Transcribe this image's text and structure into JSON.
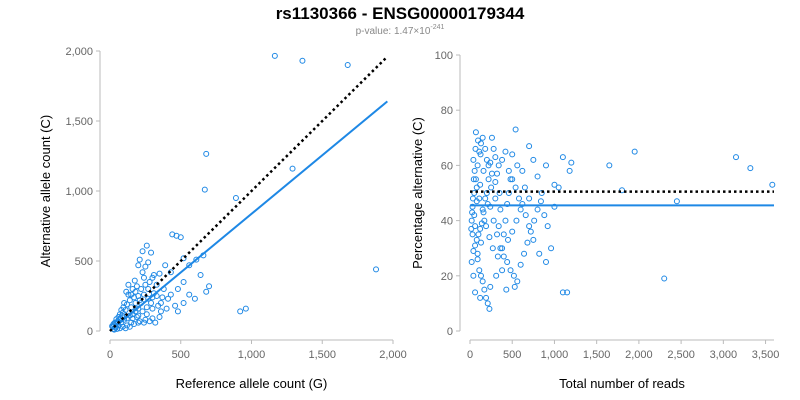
{
  "title": "rs1130366 - ENSG00000179344",
  "subtitle": {
    "prefix": "p-value: ",
    "mantissa": "1.47×10",
    "exponent": "-241"
  },
  "colors": {
    "points": "#1e88e5",
    "fit": "#1e88e5",
    "reference": "#000000",
    "axes": "#bbbbbb",
    "ticks": "#666666"
  },
  "chart_data": [
    {
      "type": "scatter",
      "xlabel": "Reference allele count (G)",
      "ylabel": "Alternative allele count (C)",
      "xlim": [
        0,
        2000
      ],
      "ylim": [
        0,
        2000
      ],
      "xticks": [
        0,
        500,
        1000,
        1500,
        2000
      ],
      "xtick_labels": [
        "0",
        "500",
        "1,000",
        "1,500",
        "2,000"
      ],
      "yticks": [
        0,
        500,
        1000,
        1500,
        2000
      ],
      "ytick_labels": [
        "0",
        "500",
        "1,000",
        "1,500",
        "2,000"
      ],
      "points": [
        [
          1165,
          1965
        ],
        [
          1360,
          1930
        ],
        [
          1680,
          1900
        ],
        [
          680,
          1265
        ],
        [
          670,
          1010
        ],
        [
          1290,
          1160
        ],
        [
          890,
          950
        ],
        [
          440,
          690
        ],
        [
          470,
          680
        ],
        [
          500,
          670
        ],
        [
          660,
          540
        ],
        [
          1880,
          440
        ],
        [
          960,
          160
        ],
        [
          920,
          140
        ],
        [
          520,
          520
        ],
        [
          560,
          470
        ],
        [
          430,
          420
        ],
        [
          390,
          470
        ],
        [
          610,
          510
        ],
        [
          350,
          410
        ],
        [
          300,
          380
        ],
        [
          560,
          260
        ],
        [
          600,
          230
        ],
        [
          680,
          280
        ],
        [
          480,
          300
        ],
        [
          430,
          260
        ],
        [
          380,
          300
        ],
        [
          520,
          350
        ],
        [
          700,
          320
        ],
        [
          640,
          400
        ],
        [
          480,
          140
        ],
        [
          460,
          180
        ],
        [
          520,
          200
        ],
        [
          410,
          230
        ],
        [
          360,
          200
        ],
        [
          330,
          330
        ],
        [
          270,
          300
        ],
        [
          250,
          330
        ],
        [
          240,
          380
        ],
        [
          220,
          300
        ],
        [
          200,
          250
        ],
        [
          180,
          280
        ],
        [
          300,
          240
        ],
        [
          290,
          200
        ],
        [
          260,
          170
        ],
        [
          220,
          200
        ],
        [
          200,
          160
        ],
        [
          180,
          200
        ],
        [
          170,
          240
        ],
        [
          150,
          170
        ],
        [
          140,
          220
        ],
        [
          130,
          260
        ],
        [
          120,
          190
        ],
        [
          110,
          150
        ],
        [
          100,
          200
        ],
        [
          95,
          170
        ],
        [
          90,
          130
        ],
        [
          85,
          110
        ],
        [
          80,
          150
        ],
        [
          75,
          90
        ],
        [
          70,
          120
        ],
        [
          65,
          80
        ],
        [
          60,
          100
        ],
        [
          55,
          70
        ],
        [
          50,
          60
        ],
        [
          45,
          85
        ],
        [
          40,
          50
        ],
        [
          35,
          60
        ],
        [
          30,
          40
        ],
        [
          25,
          50
        ],
        [
          20,
          30
        ],
        [
          15,
          35
        ],
        [
          60,
          40
        ],
        [
          80,
          60
        ],
        [
          100,
          80
        ],
        [
          120,
          90
        ],
        [
          140,
          110
        ],
        [
          160,
          120
        ],
        [
          180,
          140
        ],
        [
          200,
          110
        ],
        [
          230,
          140
        ],
        [
          260,
          120
        ],
        [
          300,
          160
        ],
        [
          340,
          180
        ],
        [
          360,
          140
        ],
        [
          400,
          160
        ],
        [
          150,
          60
        ],
        [
          200,
          60
        ],
        [
          250,
          80
        ],
        [
          300,
          90
        ],
        [
          350,
          100
        ],
        [
          120,
          40
        ],
        [
          170,
          50
        ],
        [
          90,
          30
        ],
        [
          70,
          20
        ],
        [
          110,
          20
        ],
        [
          140,
          30
        ],
        [
          50,
          15
        ],
        [
          30,
          10
        ],
        [
          40,
          25
        ],
        [
          25,
          15
        ],
        [
          160,
          90
        ],
        [
          190,
          100
        ],
        [
          210,
          70
        ],
        [
          240,
          60
        ],
        [
          280,
          70
        ],
        [
          320,
          60
        ],
        [
          270,
          230
        ],
        [
          310,
          270
        ],
        [
          330,
          250
        ],
        [
          370,
          240
        ],
        [
          240,
          260
        ],
        [
          210,
          220
        ],
        [
          190,
          320
        ],
        [
          160,
          300
        ],
        [
          130,
          330
        ],
        [
          115,
          280
        ],
        [
          150,
          260
        ],
        [
          175,
          360
        ],
        [
          280,
          350
        ],
        [
          310,
          400
        ],
        [
          230,
          420
        ],
        [
          250,
          460
        ],
        [
          270,
          490
        ],
        [
          210,
          510
        ],
        [
          200,
          470
        ],
        [
          290,
          560
        ],
        [
          260,
          610
        ],
        [
          230,
          570
        ]
      ],
      "fit_line": {
        "x": [
          0,
          1960
        ],
        "y": [
          0,
          1640
        ]
      },
      "reference_line": {
        "x": [
          0,
          1960
        ],
        "y": [
          0,
          1960
        ]
      }
    },
    {
      "type": "scatter",
      "xlabel": "Total number of reads",
      "ylabel": "Percentage alternative (C)",
      "xlim": [
        0,
        3600
      ],
      "ylim": [
        0,
        100
      ],
      "xticks": [
        0,
        500,
        1000,
        1500,
        2000,
        2500,
        3000,
        3500
      ],
      "xtick_labels": [
        "0",
        "500",
        "1,000",
        "1,500",
        "2,000",
        "2,500",
        "3,000",
        "3,500"
      ],
      "yticks": [
        0,
        20,
        40,
        60,
        80,
        100
      ],
      "ytick_labels": [
        "0",
        "20",
        "40",
        "60",
        "80",
        "100"
      ],
      "points": [
        [
          1950,
          65
        ],
        [
          3150,
          63
        ],
        [
          3320,
          59
        ],
        [
          3580,
          53
        ],
        [
          2450,
          47
        ],
        [
          2300,
          19
        ],
        [
          1800,
          51
        ],
        [
          1650,
          60
        ],
        [
          1150,
          14
        ],
        [
          1100,
          14
        ],
        [
          1200,
          61
        ],
        [
          1180,
          58
        ],
        [
          1100,
          63
        ],
        [
          1000,
          53
        ],
        [
          900,
          60
        ],
        [
          850,
          50
        ],
        [
          800,
          56
        ],
        [
          700,
          67
        ],
        [
          750,
          62
        ],
        [
          620,
          58
        ],
        [
          560,
          60
        ],
        [
          540,
          73
        ],
        [
          500,
          64
        ],
        [
          480,
          55
        ],
        [
          460,
          50
        ],
        [
          440,
          46
        ],
        [
          420,
          40
        ],
        [
          400,
          35
        ],
        [
          380,
          30
        ],
        [
          360,
          44
        ],
        [
          340,
          38
        ],
        [
          320,
          57
        ],
        [
          300,
          63
        ],
        [
          280,
          66
        ],
        [
          260,
          70
        ],
        [
          240,
          61
        ],
        [
          220,
          55
        ],
        [
          200,
          50
        ],
        [
          180,
          48
        ],
        [
          160,
          43
        ],
        [
          140,
          39
        ],
        [
          120,
          37
        ],
        [
          100,
          35
        ],
        [
          80,
          33
        ],
        [
          60,
          31
        ],
        [
          40,
          29
        ],
        [
          20,
          40
        ],
        [
          30,
          45
        ],
        [
          50,
          50
        ],
        [
          70,
          55
        ],
        [
          90,
          60
        ],
        [
          110,
          65
        ],
        [
          130,
          68
        ],
        [
          150,
          70
        ],
        [
          70,
          72
        ],
        [
          90,
          26
        ],
        [
          110,
          22
        ],
        [
          130,
          20
        ],
        [
          150,
          18
        ],
        [
          170,
          15
        ],
        [
          190,
          12
        ],
        [
          210,
          10
        ],
        [
          230,
          8
        ],
        [
          60,
          14
        ],
        [
          40,
          20
        ],
        [
          20,
          25
        ],
        [
          30,
          35
        ],
        [
          50,
          42
        ],
        [
          80,
          47
        ],
        [
          120,
          53
        ],
        [
          160,
          58
        ],
        [
          200,
          62
        ],
        [
          240,
          45
        ],
        [
          280,
          40
        ],
        [
          320,
          35
        ],
        [
          360,
          30
        ],
        [
          400,
          27
        ],
        [
          440,
          25
        ],
        [
          480,
          22
        ],
        [
          520,
          20
        ],
        [
          560,
          18
        ],
        [
          600,
          24
        ],
        [
          640,
          28
        ],
        [
          680,
          32
        ],
        [
          720,
          36
        ],
        [
          760,
          40
        ],
        [
          800,
          44
        ],
        [
          840,
          47
        ],
        [
          880,
          42
        ],
        [
          920,
          38
        ],
        [
          960,
          30
        ],
        [
          1000,
          45
        ],
        [
          1050,
          52
        ],
        [
          700,
          48
        ],
        [
          650,
          52
        ],
        [
          600,
          44
        ],
        [
          550,
          40
        ],
        [
          500,
          36
        ],
        [
          450,
          33
        ],
        [
          350,
          50
        ],
        [
          300,
          48
        ],
        [
          250,
          52
        ],
        [
          210,
          46
        ],
        [
          170,
          40
        ],
        [
          130,
          32
        ],
        [
          90,
          28
        ],
        [
          60,
          38
        ],
        [
          45,
          55
        ],
        [
          35,
          48
        ],
        [
          25,
          43
        ],
        [
          15,
          37
        ],
        [
          330,
          27
        ],
        [
          270,
          30
        ],
        [
          230,
          34
        ],
        [
          190,
          38
        ],
        [
          150,
          44
        ],
        [
          110,
          48
        ],
        [
          80,
          52
        ],
        [
          55,
          58
        ],
        [
          40,
          62
        ],
        [
          65,
          66
        ],
        [
          95,
          69
        ],
        [
          125,
          64
        ],
        [
          180,
          66
        ],
        [
          220,
          60
        ],
        [
          260,
          57
        ],
        [
          300,
          54
        ],
        [
          340,
          60
        ],
        [
          380,
          62
        ],
        [
          420,
          65
        ],
        [
          460,
          58
        ],
        [
          500,
          55
        ],
        [
          540,
          52
        ],
        [
          580,
          48
        ],
        [
          620,
          46
        ],
        [
          660,
          42
        ],
        [
          700,
          38
        ],
        [
          750,
          33
        ],
        [
          820,
          28
        ],
        [
          900,
          25
        ],
        [
          430,
          15
        ],
        [
          530,
          16
        ],
        [
          120,
          12
        ],
        [
          240,
          16
        ],
        [
          310,
          20
        ],
        [
          380,
          22
        ]
      ],
      "fit_line": {
        "x": [
          0,
          3600
        ],
        "y": [
          45.5,
          45.5
        ]
      },
      "reference_line": {
        "x": [
          0,
          3600
        ],
        "y": [
          50.5,
          50.5
        ]
      }
    }
  ]
}
